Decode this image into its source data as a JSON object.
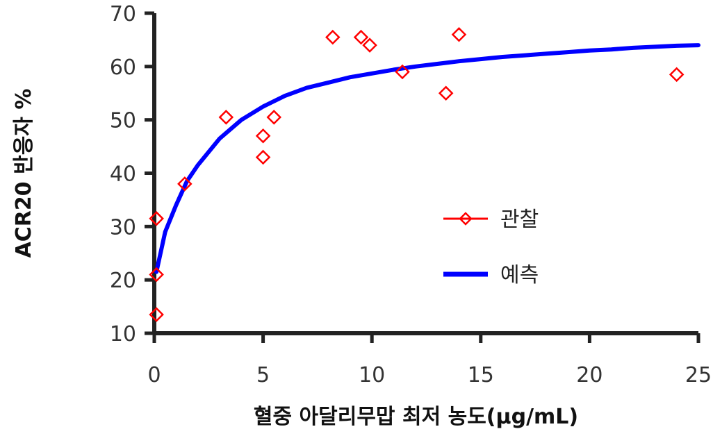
{
  "chart_data": {
    "type": "scatter",
    "xlabel": "혈중 아달리무맙 최저 농도(μg/mL)",
    "ylabel": "ACR20 반응자 %",
    "xlim": [
      0,
      25
    ],
    "ylim": [
      10,
      70
    ],
    "xticks": [
      0,
      5,
      10,
      15,
      20,
      25
    ],
    "yticks": [
      10,
      20,
      30,
      40,
      50,
      60,
      70
    ],
    "grid": false,
    "legend_position": "right-middle",
    "series": [
      {
        "name": "관찰",
        "kind": "scatter",
        "marker": "diamond-open",
        "color": "#ff0000",
        "x": [
          0.1,
          0.1,
          0.1,
          1.4,
          3.3,
          5.0,
          5.0,
          5.5,
          8.2,
          9.5,
          9.9,
          11.4,
          13.4,
          14.0,
          24.0
        ],
        "y": [
          13.5,
          21,
          31.5,
          38,
          50.5,
          47,
          43,
          50.5,
          65.5,
          65.5,
          64,
          59,
          55,
          66,
          58.5
        ]
      },
      {
        "name": "예측",
        "kind": "line",
        "color": "#0000ff",
        "x": [
          0.1,
          0.5,
          1,
          1.5,
          2,
          3,
          4,
          5,
          6,
          7,
          8,
          9,
          10,
          11,
          12,
          13,
          14,
          15,
          16,
          17,
          18,
          19,
          20,
          21,
          22,
          23,
          24,
          25
        ],
        "y": [
          21.5,
          29,
          34,
          38.5,
          41.5,
          46.5,
          50,
          52.5,
          54.5,
          56,
          57,
          58,
          58.7,
          59.4,
          60,
          60.5,
          61,
          61.4,
          61.8,
          62.1,
          62.4,
          62.7,
          63,
          63.2,
          63.5,
          63.7,
          63.9,
          64
        ]
      }
    ]
  }
}
